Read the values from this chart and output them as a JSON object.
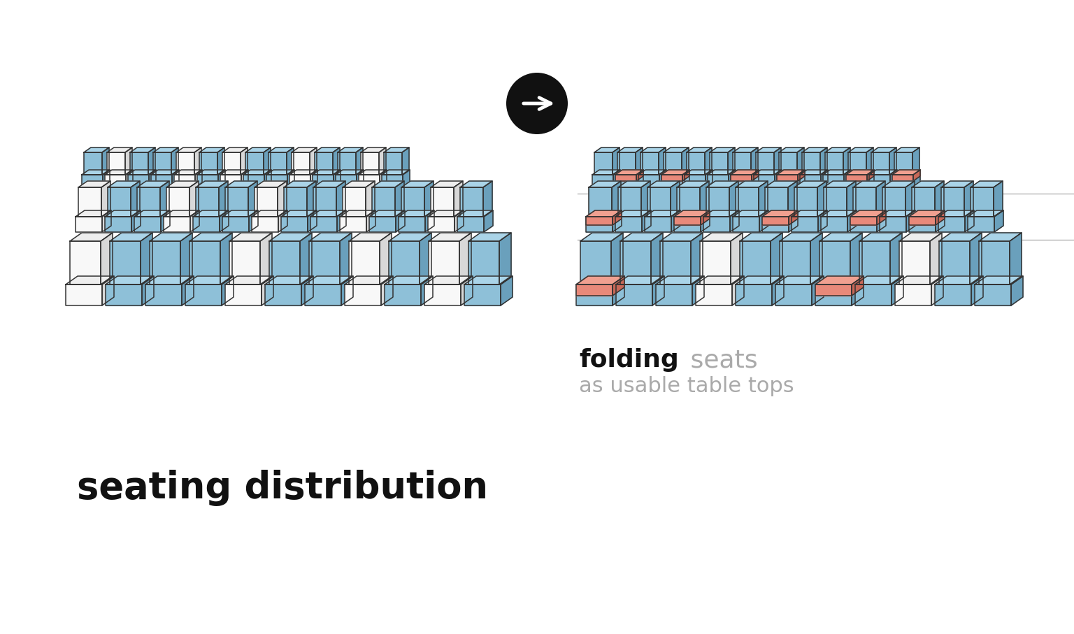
{
  "bg_color": "#ffffff",
  "blue_face": "#8ec0d8",
  "blue_side": "#6aa0bc",
  "blue_top": "#aad4e8",
  "white_face": "#f8f8f8",
  "white_side": "#d8d8d8",
  "white_top": "#eeeeee",
  "salmon_face": "#e8897a",
  "salmon_side": "#c86858",
  "salmon_top": "#f0a090",
  "outline": "#333333",
  "lw": 1.1,
  "arrow_bg": "#111111",
  "arrow_fg": "#ffffff",
  "title": "seating distribution",
  "label_bold": "folding",
  "label_gray": " seats",
  "label2": "as usable table tops",
  "figsize": [
    15.36,
    9.07
  ],
  "left_rows": [
    {
      "pattern": [
        "B",
        "W",
        "B",
        "B",
        "W",
        "B",
        "W",
        "B",
        "B",
        "W",
        "B",
        "B",
        "W",
        "B"
      ],
      "n": 14
    },
    {
      "pattern": [
        "W",
        "B",
        "B",
        "W",
        "B",
        "B",
        "W",
        "B",
        "B",
        "W",
        "B",
        "B",
        "W",
        "B"
      ],
      "n": 14
    },
    {
      "pattern": [
        "W",
        "B",
        "B",
        "B",
        "W",
        "B",
        "B",
        "W",
        "B",
        "W",
        "B"
      ],
      "n": 11
    }
  ],
  "right_rows": [
    {
      "pattern": [
        "B",
        "S",
        "B",
        "S",
        "B",
        "B",
        "S",
        "B",
        "S",
        "B",
        "B",
        "S",
        "B",
        "S"
      ],
      "n": 14
    },
    {
      "pattern": [
        "S",
        "B",
        "B",
        "S",
        "B",
        "B",
        "S",
        "B",
        "B",
        "S",
        "B",
        "S",
        "B",
        "B"
      ],
      "n": 14
    },
    {
      "pattern": [
        "S",
        "B",
        "B",
        "W",
        "B",
        "B",
        "S",
        "B",
        "W",
        "B",
        "B"
      ],
      "n": 11
    }
  ]
}
